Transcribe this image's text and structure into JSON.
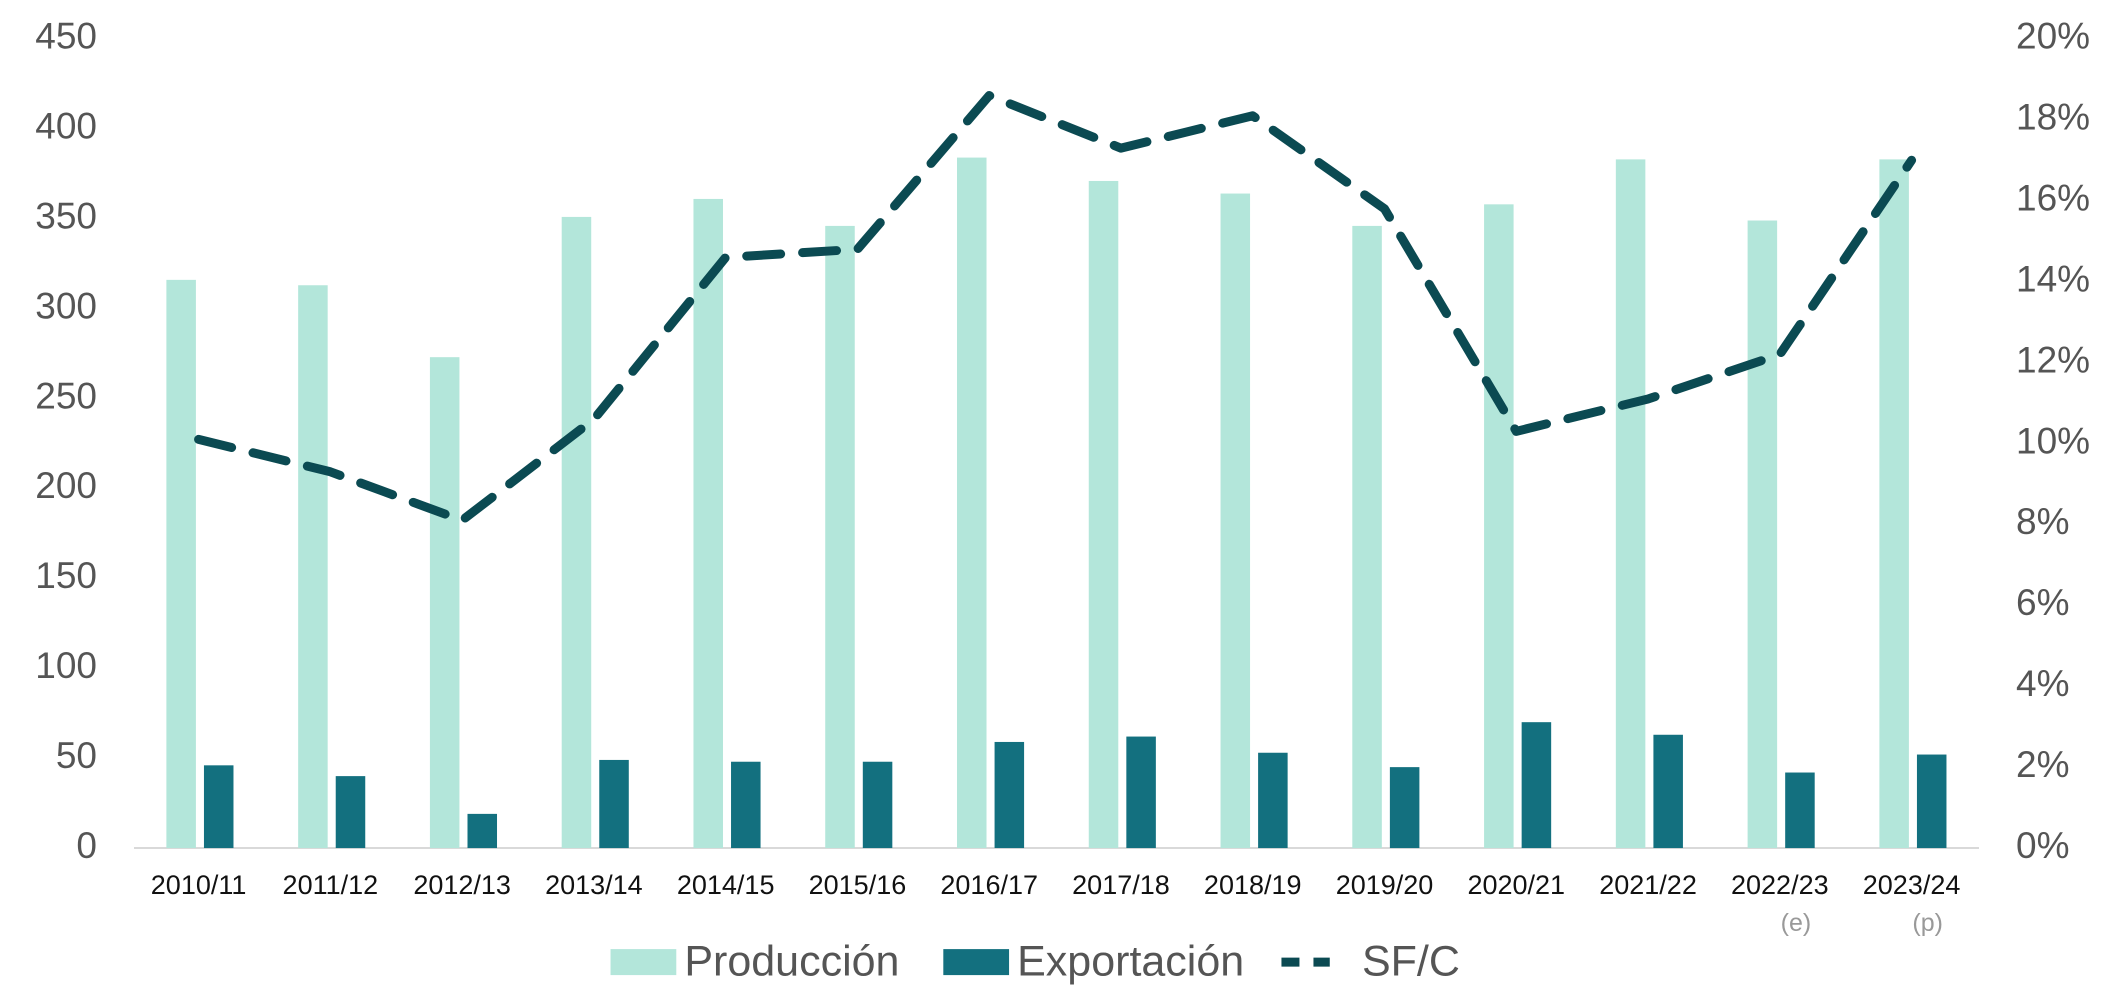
{
  "chart_data": {
    "type": "bar",
    "categories": [
      "2010/11",
      "2011/12",
      "2012/13",
      "2013/14",
      "2014/15",
      "2015/16",
      "2016/17",
      "2017/18",
      "2018/19",
      "2019/20",
      "2020/21",
      "2021/22",
      "2022/23",
      "2023/24"
    ],
    "category_notes": [
      null,
      null,
      null,
      null,
      null,
      null,
      null,
      null,
      null,
      null,
      null,
      null,
      "(e)",
      "(p)"
    ],
    "series": [
      {
        "name": "Producción",
        "type": "bar",
        "color": "#b3e6da",
        "values": [
          316,
          313,
          273,
          351,
          361,
          346,
          384,
          371,
          364,
          346,
          358,
          383,
          349,
          383
        ]
      },
      {
        "name": "Exportación",
        "type": "bar",
        "color": "#13707f",
        "values": [
          46,
          40,
          19,
          49,
          48,
          48,
          59,
          62,
          53,
          45,
          70,
          63,
          42,
          52
        ]
      },
      {
        "name": "SF/C",
        "type": "line",
        "axis": "y2",
        "color": "#0b4a52",
        "dashed": true,
        "values": [
          10.1,
          9.3,
          8.1,
          10.6,
          14.6,
          14.8,
          18.6,
          17.3,
          18.1,
          15.8,
          10.3,
          11.1,
          12.2,
          17.0
        ]
      }
    ],
    "ylim": [
      0,
      450
    ],
    "yticks": [
      0,
      50,
      100,
      150,
      200,
      250,
      300,
      350,
      400,
      450
    ],
    "y2lim": [
      0,
      20
    ],
    "y2ticks": [
      {
        "value": 0,
        "label": "0%"
      },
      {
        "value": 2,
        "label": "2%"
      },
      {
        "value": 4,
        "label": "4%"
      },
      {
        "value": 6,
        "label": "6%"
      },
      {
        "value": 8,
        "label": "8%"
      },
      {
        "value": 10,
        "label": "10%"
      },
      {
        "value": 12,
        "label": "12%"
      },
      {
        "value": 14,
        "label": "14%"
      },
      {
        "value": 16,
        "label": "16%"
      },
      {
        "value": 18,
        "label": "18%"
      },
      {
        "value": 20,
        "label": "20%"
      }
    ],
    "grid": false,
    "legend": "bottom"
  }
}
